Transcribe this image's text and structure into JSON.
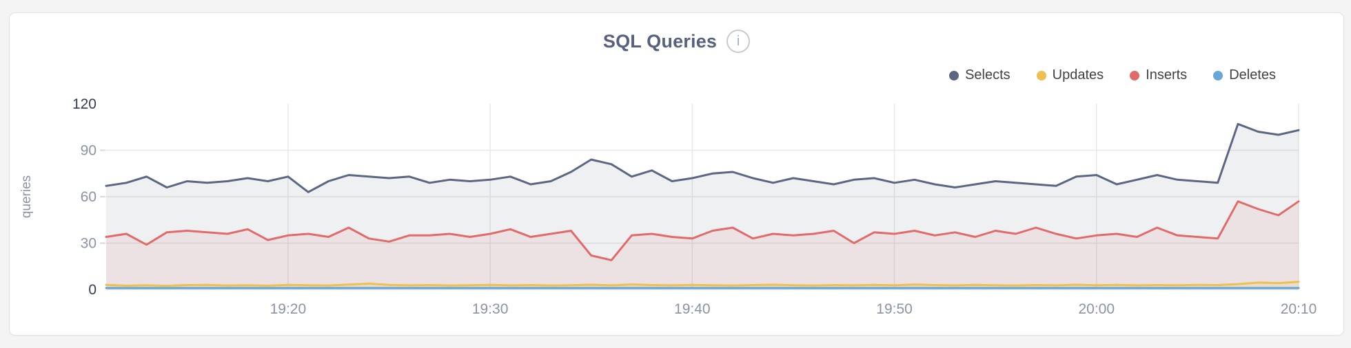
{
  "panel": {
    "title": "SQL Queries",
    "info_icon_glyph": "i"
  },
  "colors": {
    "page_bg": "#f4f4f5",
    "card_border": "#e3e3e4",
    "title": "#55617e",
    "axis_label": "#8a93a4",
    "axis_label_strong": "#333d52",
    "grid": "#e8e8e8",
    "tick": "#d9d9d9",
    "legend_text": "#414141",
    "info_icon_ring": "#cacaca",
    "info_icon_text": "#9fb0c6"
  },
  "chart_data": {
    "type": "area",
    "title": "SQL Queries",
    "xlabel": "",
    "ylabel": "queries",
    "ylim": [
      0,
      120
    ],
    "y_ticks": [
      0,
      30,
      60,
      90,
      120
    ],
    "x_ticks": [
      {
        "index": 9,
        "label": "19:20"
      },
      {
        "index": 19,
        "label": "19:30"
      },
      {
        "index": 29,
        "label": "19:40"
      },
      {
        "index": 39,
        "label": "19:50"
      },
      {
        "index": 49,
        "label": "20:00"
      },
      {
        "index": 59,
        "label": "20:10"
      }
    ],
    "grid": true,
    "legend_position": "top-right",
    "series": [
      {
        "name": "Selects",
        "color": "#5b6782",
        "fill": "rgba(91,103,130,0.10)",
        "values": [
          67,
          69,
          73,
          66,
          70,
          69,
          70,
          72,
          70,
          73,
          63,
          70,
          74,
          73,
          72,
          73,
          69,
          71,
          70,
          71,
          73,
          68,
          70,
          76,
          84,
          81,
          73,
          77,
          70,
          72,
          75,
          76,
          72,
          69,
          72,
          70,
          68,
          71,
          72,
          69,
          71,
          68,
          66,
          68,
          70,
          69,
          68,
          67,
          73,
          74,
          68,
          71,
          74,
          71,
          70,
          69,
          107,
          102,
          100,
          103
        ]
      },
      {
        "name": "Updates",
        "color": "#edc04f",
        "fill": "rgba(237,192,79,0.14)",
        "values": [
          3,
          2.5,
          2.8,
          2.4,
          2.9,
          3,
          2.6,
          2.8,
          2.5,
          3,
          2.8,
          2.6,
          3.2,
          3.8,
          3,
          2.7,
          2.9,
          2.6,
          2.8,
          3,
          2.7,
          2.9,
          2.6,
          2.8,
          3.1,
          2.7,
          3.3,
          2.9,
          2.7,
          3,
          2.8,
          2.6,
          2.9,
          3.1,
          2.8,
          2.6,
          2.9,
          2.7,
          3,
          2.8,
          3.2,
          2.9,
          2.7,
          3,
          2.8,
          2.6,
          2.9,
          2.7,
          3.1,
          2.8,
          3,
          2.7,
          2.9,
          2.8,
          3,
          2.9,
          3.5,
          4.5,
          4.2,
          5
        ]
      },
      {
        "name": "Inserts",
        "color": "#e16b6b",
        "fill": "rgba(225,107,107,0.10)",
        "values": [
          34,
          36,
          29,
          37,
          38,
          37,
          36,
          39,
          32,
          35,
          36,
          34,
          40,
          33,
          31,
          35,
          35,
          36,
          34,
          36,
          39,
          34,
          36,
          38,
          22,
          19,
          35,
          36,
          34,
          33,
          38,
          40,
          33,
          36,
          35,
          36,
          38,
          30,
          37,
          36,
          38,
          35,
          37,
          34,
          38,
          36,
          40,
          36,
          33,
          35,
          36,
          34,
          40,
          35,
          34,
          33,
          57,
          52,
          48,
          57
        ]
      },
      {
        "name": "Deletes",
        "color": "#67a8d6",
        "fill": "rgba(103,168,214,0.12)",
        "values": [
          1,
          1,
          1,
          1,
          1,
          1,
          1,
          1,
          1,
          1,
          1,
          1,
          1,
          1,
          1,
          1,
          1,
          1,
          1,
          1,
          1,
          1,
          1,
          1,
          1,
          1,
          1,
          1,
          1,
          1,
          1,
          1,
          1,
          1,
          1,
          1,
          1,
          1,
          1,
          1,
          1,
          1,
          1,
          1,
          1,
          1,
          1,
          1,
          1,
          1,
          1,
          1,
          1,
          1,
          1,
          1,
          1,
          1,
          1,
          1
        ]
      }
    ]
  }
}
